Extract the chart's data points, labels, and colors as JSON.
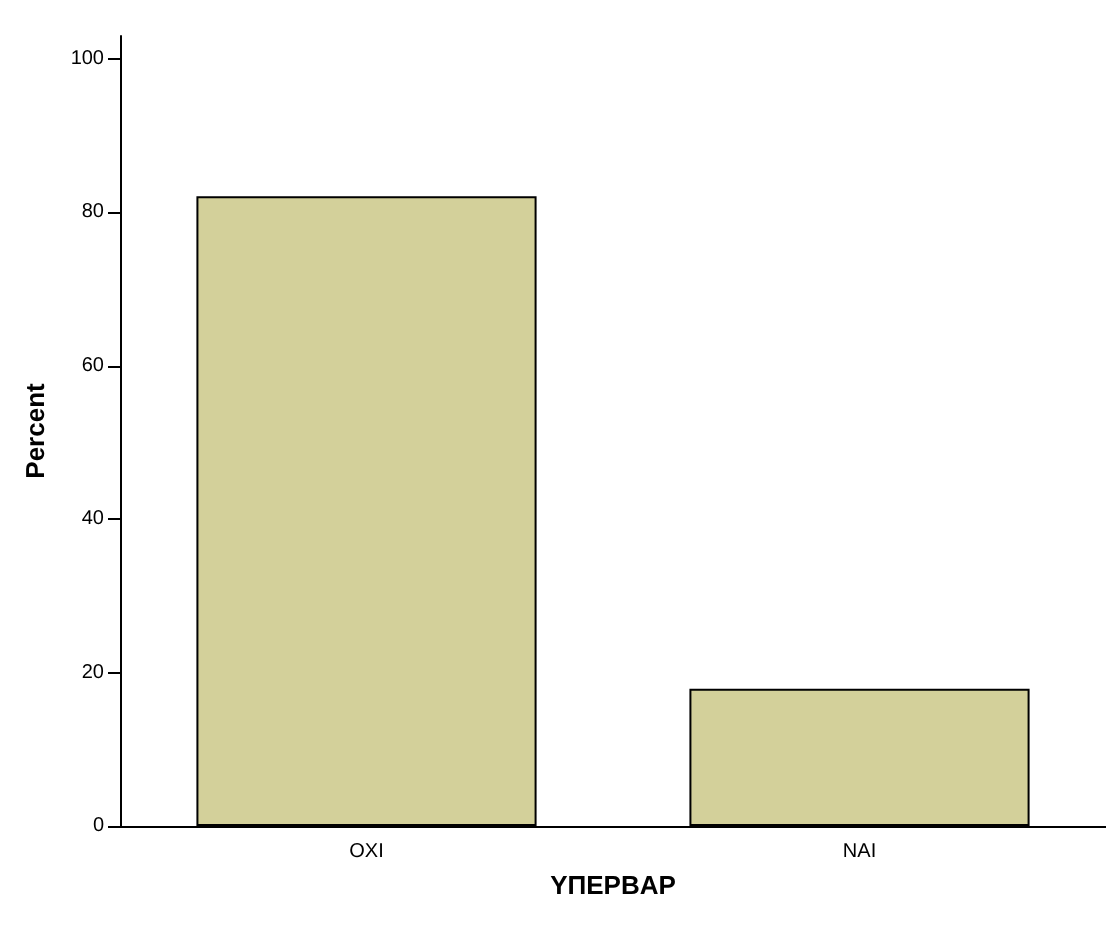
{
  "chart_data": {
    "type": "bar",
    "xlabel": "ΥΠΕΡΒΑΡ",
    "ylabel": "Percent",
    "categories": [
      "ΟΧΙ",
      "ΝΑΙ"
    ],
    "values": [
      82.1,
      17.9
    ],
    "color": "#d3d09a",
    "ylim": [
      0,
      103
    ],
    "yticks": [
      0,
      20,
      40,
      60,
      80,
      100
    ],
    "grid": false
  }
}
